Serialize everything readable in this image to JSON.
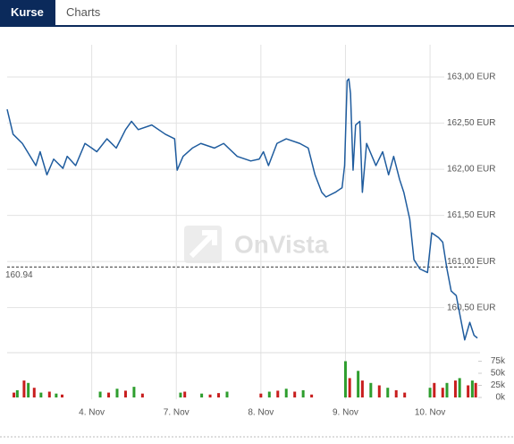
{
  "tabs": [
    "Kurse",
    "Charts"
  ],
  "chart_data": {
    "type": "line",
    "currency": "EUR",
    "watermark": "OnVista",
    "x": [
      0,
      0.07,
      0.18,
      0.34,
      0.39,
      0.47,
      0.55,
      0.66,
      0.71,
      0.81,
      0.92,
      1.0,
      1.06,
      1.18,
      1.29,
      1.4,
      1.47,
      1.55,
      1.71,
      1.87,
      1.98,
      2.01,
      2.08,
      2.19,
      2.29,
      2.45,
      2.56,
      2.72,
      2.88,
      2.98,
      3.03,
      3.09,
      3.19,
      3.3,
      3.46,
      3.56,
      3.64,
      3.72,
      3.77,
      3.88,
      3.96,
      3.99,
      4.02,
      4.04,
      4.06,
      4.09,
      4.12,
      4.17,
      4.2,
      4.25,
      4.36,
      4.44,
      4.51,
      4.57,
      4.64,
      4.69,
      4.76,
      4.81,
      4.88,
      4.97,
      5.02,
      5.1,
      5.15,
      5.2,
      5.25,
      5.31,
      5.36,
      5.41,
      5.47,
      5.52,
      5.56
    ],
    "series": [
      {
        "color": "#1f5c9e",
        "values": [
          162.65,
          162.38,
          162.28,
          162.04,
          162.19,
          161.94,
          162.11,
          162.01,
          162.14,
          162.04,
          162.28,
          162.23,
          162.19,
          162.33,
          162.23,
          162.43,
          162.52,
          162.43,
          162.48,
          162.38,
          162.33,
          161.99,
          162.14,
          162.23,
          162.28,
          162.23,
          162.28,
          162.14,
          162.09,
          162.11,
          162.19,
          162.04,
          162.28,
          162.33,
          162.28,
          162.23,
          161.94,
          161.75,
          161.7,
          161.75,
          161.8,
          162.04,
          162.96,
          162.98,
          162.82,
          161.99,
          162.48,
          162.52,
          161.75,
          162.28,
          162.04,
          162.19,
          161.94,
          162.14,
          161.89,
          161.75,
          161.46,
          161.02,
          160.92,
          160.88,
          161.31,
          161.26,
          161.21,
          160.92,
          160.68,
          160.63,
          160.39,
          160.15,
          160.34,
          160.2,
          160.17
        ]
      }
    ],
    "xlim": [
      0,
      5.57
    ],
    "xticks": [
      {
        "value": 1,
        "label": "4. Nov"
      },
      {
        "value": 2,
        "label": "7. Nov"
      },
      {
        "value": 3,
        "label": "8. Nov"
      },
      {
        "value": 4,
        "label": "9. Nov"
      },
      {
        "value": 5,
        "label": "10. Nov"
      }
    ],
    "ylim": [
      160.05,
      163.35
    ],
    "yticks": [
      {
        "value": 163.0,
        "label": "163,00 EUR"
      },
      {
        "value": 162.5,
        "label": "162,50 EUR"
      },
      {
        "value": 162.0,
        "label": "162,00 EUR"
      },
      {
        "value": 161.5,
        "label": "161,50 EUR"
      },
      {
        "value": 161.0,
        "label": "161,00 EUR"
      },
      {
        "value": 160.5,
        "label": "160,50 EUR"
      }
    ],
    "reference": 160.94,
    "grid": true,
    "volume": {
      "ylim": [
        0,
        80000
      ],
      "yticks": [
        {
          "value": 75000,
          "label": "75k"
        },
        {
          "value": 50000,
          "label": "50k"
        },
        {
          "value": 25000,
          "label": "25k"
        },
        {
          "value": 0,
          "label": "0k"
        }
      ],
      "series": [
        {
          "color": "#2e9e2e",
          "x": [
            0.12,
            0.25,
            0.4,
            0.58,
            1.1,
            1.3,
            1.5,
            2.05,
            2.3,
            2.6,
            3.1,
            3.3,
            3.5,
            4.0,
            4.15,
            4.3,
            4.5,
            5.0,
            5.2,
            5.35,
            5.5
          ],
          "values": [
            15000,
            30000,
            10000,
            8000,
            12000,
            18000,
            22000,
            10000,
            8000,
            12000,
            12000,
            18000,
            15000,
            75000,
            55000,
            30000,
            20000,
            20000,
            30000,
            40000,
            35000
          ]
        },
        {
          "color": "#c81e1e",
          "x": [
            0.08,
            0.2,
            0.32,
            0.5,
            0.65,
            1.2,
            1.4,
            1.6,
            2.1,
            2.4,
            2.5,
            3.0,
            3.2,
            3.4,
            3.6,
            4.05,
            4.2,
            4.4,
            4.6,
            4.7,
            5.05,
            5.15,
            5.3,
            5.45,
            5.54
          ],
          "values": [
            10000,
            35000,
            20000,
            12000,
            6000,
            10000,
            14000,
            8000,
            12000,
            6000,
            9000,
            8000,
            14000,
            12000,
            6000,
            40000,
            35000,
            25000,
            15000,
            10000,
            30000,
            20000,
            35000,
            25000,
            30000
          ]
        }
      ]
    }
  }
}
